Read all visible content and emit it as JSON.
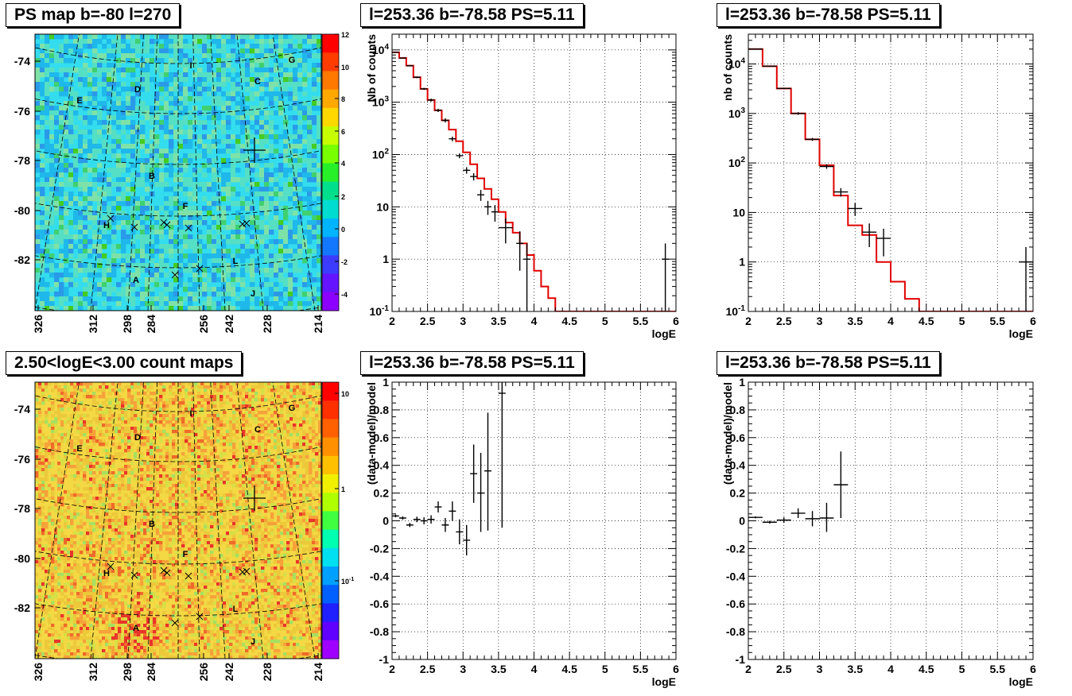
{
  "panels": {
    "p1": {
      "title": "PS map b=-80 l=270"
    },
    "p2": {
      "title": "l=253.36 b=-78.58 PS=5.11"
    },
    "p3": {
      "title": "l=253.36 b=-78.58 PS=5.11"
    },
    "p4": {
      "title": "2.50<logE<3.00 count maps"
    },
    "p5": {
      "title": "l=253.36 b=-78.58 PS=5.11"
    },
    "p6": {
      "title": "l=253.36 b=-78.58 PS=5.11"
    }
  },
  "chart_data": [
    {
      "id": "ps-map",
      "type": "heatmap",
      "title": "PS map b=-80 l=270",
      "x_ticks": [
        "326",
        "312",
        "298",
        "284",
        "256",
        "242",
        "228",
        "214"
      ],
      "y_ticks": [
        "-74",
        "-76",
        "-78",
        "-80",
        "-82"
      ],
      "colorbar_ticks": [
        "12",
        "10",
        "8",
        "6",
        "4",
        "2",
        "0",
        "-2",
        "-4"
      ],
      "zlim": [
        -5,
        12
      ],
      "region_labels": [
        "A",
        "B",
        "C",
        "D",
        "E",
        "F",
        "G",
        "H",
        "I",
        "J",
        "L"
      ],
      "colors": {
        "background": "#33ddee"
      }
    },
    {
      "id": "spectrum-1",
      "type": "line",
      "title": "l=253.36 b=-78.58 PS=5.11",
      "xlabel": "logE",
      "ylabel": "Nb of counts",
      "xlim": [
        2,
        6
      ],
      "ylim": [
        0.1,
        20000
      ],
      "log_y": true,
      "x_ticks": [
        "2",
        "2.5",
        "3",
        "3.5",
        "4",
        "4.5",
        "5",
        "5.5",
        "6"
      ],
      "y_ticks": [
        "10^-1",
        "1",
        "10",
        "10^2",
        "10^3",
        "10^4"
      ],
      "grid": true,
      "model": {
        "color": "#e00000",
        "bin_edges": [
          2.0,
          2.1,
          2.2,
          2.3,
          2.4,
          2.5,
          2.6,
          2.7,
          2.8,
          2.9,
          3.0,
          3.1,
          3.2,
          3.3,
          3.4,
          3.5,
          3.6,
          3.7,
          3.8,
          3.9,
          4.0,
          4.1,
          4.2,
          4.3,
          4.4,
          4.5,
          4.6,
          4.7,
          4.8,
          4.9,
          5.0,
          5.1,
          5.2,
          5.3,
          5.4,
          5.5,
          5.6,
          5.7,
          5.8,
          5.9,
          6.0
        ],
        "values": [
          9000,
          7000,
          5000,
          3000,
          1800,
          1100,
          700,
          450,
          300,
          180,
          110,
          65,
          35,
          22,
          14,
          8,
          5,
          3.2,
          2,
          1.2,
          0.6,
          0.3,
          0.18,
          0.1,
          0.1,
          0.1,
          0.1,
          0.1,
          0.1,
          0.1,
          0.1,
          0.1,
          0.1,
          0.1,
          0.1,
          0.1,
          0.1,
          0.1,
          0.1,
          0.1
        ]
      },
      "data": [
        {
          "x": 2.05,
          "y": 9000,
          "xerr": 0.05,
          "ylo": 8800,
          "yhi": 9200
        },
        {
          "x": 2.15,
          "y": 7000,
          "xerr": 0.05,
          "ylo": 6830,
          "yhi": 7170
        },
        {
          "x": 2.25,
          "y": 5000,
          "xerr": 0.05,
          "ylo": 4860,
          "yhi": 5140
        },
        {
          "x": 2.35,
          "y": 3000,
          "xerr": 0.05,
          "ylo": 2890,
          "yhi": 3110
        },
        {
          "x": 2.45,
          "y": 1800,
          "xerr": 0.05,
          "ylo": 1720,
          "yhi": 1880
        },
        {
          "x": 2.55,
          "y": 1100,
          "xerr": 0.05,
          "ylo": 1030,
          "yhi": 1170
        },
        {
          "x": 2.65,
          "y": 700,
          "xerr": 0.05,
          "ylo": 650,
          "yhi": 750
        },
        {
          "x": 2.75,
          "y": 450,
          "xerr": 0.05,
          "ylo": 410,
          "yhi": 490
        },
        {
          "x": 2.85,
          "y": 200,
          "xerr": 0.05,
          "ylo": 180,
          "yhi": 220
        },
        {
          "x": 2.95,
          "y": 95,
          "xerr": 0.05,
          "ylo": 85,
          "yhi": 105
        },
        {
          "x": 3.05,
          "y": 50,
          "xerr": 0.05,
          "ylo": 43,
          "yhi": 57
        },
        {
          "x": 3.15,
          "y": 38,
          "xerr": 0.05,
          "ylo": 32,
          "yhi": 44
        },
        {
          "x": 3.25,
          "y": 17,
          "xerr": 0.05,
          "ylo": 13,
          "yhi": 21
        },
        {
          "x": 3.35,
          "y": 10,
          "xerr": 0.05,
          "ylo": 7,
          "yhi": 13
        },
        {
          "x": 3.45,
          "y": 8,
          "xerr": 0.05,
          "ylo": 5.2,
          "yhi": 10.8
        },
        {
          "x": 3.6,
          "y": 4,
          "xerr": 0.1,
          "ylo": 2,
          "yhi": 6
        },
        {
          "x": 3.8,
          "y": 2,
          "xerr": 0.05,
          "ylo": 0.6,
          "yhi": 3.4
        },
        {
          "x": 3.9,
          "y": 1,
          "xerr": 0.05,
          "ylo": 0.1,
          "yhi": 2
        },
        {
          "x": 5.85,
          "y": 1,
          "xerr": 0.05,
          "ylo": 0.1,
          "yhi": 2
        }
      ]
    },
    {
      "id": "spectrum-2",
      "type": "line",
      "title": "l=253.36 b=-78.58 PS=5.11",
      "xlabel": "logE",
      "ylabel": "nb of counts",
      "xlim": [
        2,
        6
      ],
      "ylim": [
        0.1,
        40000
      ],
      "log_y": true,
      "x_ticks": [
        "2",
        "2.5",
        "3",
        "3.5",
        "4",
        "4.5",
        "5",
        "5.5",
        "6"
      ],
      "y_ticks": [
        "10^-1",
        "1",
        "10",
        "10^2",
        "10^3",
        "10^4"
      ],
      "grid": true,
      "model": {
        "color": "#e00000",
        "bin_edges": [
          2.0,
          2.2,
          2.4,
          2.6,
          2.8,
          3.0,
          3.2,
          3.4,
          3.6,
          3.8,
          4.0,
          4.2,
          4.4,
          4.6,
          4.8,
          5.0,
          5.2,
          5.4,
          5.6,
          5.8,
          6.0
        ],
        "values": [
          20000,
          9000,
          3200,
          1000,
          300,
          90,
          22,
          5.5,
          3.5,
          1,
          0.4,
          0.18,
          0.1,
          0.1,
          0.1,
          0.1,
          0.1,
          0.1,
          0.1,
          0.1
        ]
      },
      "data": [
        {
          "x": 2.1,
          "y": 20000,
          "xerr": 0.1,
          "ylo": 19700,
          "yhi": 20300
        },
        {
          "x": 2.3,
          "y": 9000,
          "xerr": 0.1,
          "ylo": 8800,
          "yhi": 9200
        },
        {
          "x": 2.5,
          "y": 3200,
          "xerr": 0.1,
          "ylo": 3090,
          "yhi": 3310
        },
        {
          "x": 2.7,
          "y": 1000,
          "xerr": 0.1,
          "ylo": 940,
          "yhi": 1060
        },
        {
          "x": 2.9,
          "y": 300,
          "xerr": 0.1,
          "ylo": 280,
          "yhi": 320
        },
        {
          "x": 3.1,
          "y": 85,
          "xerr": 0.1,
          "ylo": 76,
          "yhi": 94
        },
        {
          "x": 3.3,
          "y": 26,
          "xerr": 0.1,
          "ylo": 21,
          "yhi": 31
        },
        {
          "x": 3.5,
          "y": 12,
          "xerr": 0.1,
          "ylo": 8.5,
          "yhi": 15.5
        },
        {
          "x": 3.7,
          "y": 4,
          "xerr": 0.1,
          "ylo": 2,
          "yhi": 6
        },
        {
          "x": 3.9,
          "y": 3,
          "xerr": 0.1,
          "ylo": 1.3,
          "yhi": 4.7
        },
        {
          "x": 5.9,
          "y": 1,
          "xerr": 0.1,
          "ylo": 0.1,
          "yhi": 2
        }
      ]
    },
    {
      "id": "count-map",
      "type": "heatmap",
      "title": "2.50<logE<3.00 count maps",
      "x_ticks": [
        "326",
        "312",
        "298",
        "284",
        "256",
        "242",
        "228",
        "214"
      ],
      "y_ticks": [
        "-74",
        "-76",
        "-78",
        "-80",
        "-82"
      ],
      "colorbar_ticks": [
        "10",
        "1",
        "10^-1"
      ],
      "log_z": true,
      "region_labels": [
        "A",
        "B",
        "C",
        "D",
        "E",
        "F",
        "G",
        "H",
        "I",
        "J",
        "L"
      ]
    },
    {
      "id": "residuals-1",
      "type": "scatter",
      "title": "l=253.36 b=-78.58 PS=5.11",
      "xlabel": "logE",
      "ylabel": "(data-model)/model",
      "xlim": [
        2,
        6
      ],
      "ylim": [
        -1,
        1
      ],
      "x_ticks": [
        "2",
        "2.5",
        "3",
        "3.5",
        "4",
        "4.5",
        "5",
        "5.5",
        "6"
      ],
      "y_ticks": [
        "1",
        "0.8",
        "0.6",
        "0.4",
        "0.2",
        "0",
        "-0.2",
        "-0.4",
        "-0.6",
        "-0.8",
        "-1"
      ],
      "grid": true,
      "data": [
        {
          "x": 2.05,
          "y": 0.035,
          "xerr": 0.05,
          "ylo": 0.025,
          "yhi": 0.045
        },
        {
          "x": 2.15,
          "y": 0.02,
          "xerr": 0.05,
          "ylo": 0.008,
          "yhi": 0.032
        },
        {
          "x": 2.25,
          "y": -0.03,
          "xerr": 0.05,
          "ylo": -0.045,
          "yhi": -0.015
        },
        {
          "x": 2.35,
          "y": 0.01,
          "xerr": 0.05,
          "ylo": -0.01,
          "yhi": 0.03
        },
        {
          "x": 2.45,
          "y": 0.0,
          "xerr": 0.05,
          "ylo": -0.025,
          "yhi": 0.025
        },
        {
          "x": 2.55,
          "y": 0.01,
          "xerr": 0.05,
          "ylo": -0.02,
          "yhi": 0.04
        },
        {
          "x": 2.65,
          "y": 0.1,
          "xerr": 0.05,
          "ylo": 0.06,
          "yhi": 0.14
        },
        {
          "x": 2.75,
          "y": -0.03,
          "xerr": 0.05,
          "ylo": -0.08,
          "yhi": 0.02
        },
        {
          "x": 2.85,
          "y": 0.07,
          "xerr": 0.05,
          "ylo": 0.0,
          "yhi": 0.14
        },
        {
          "x": 2.95,
          "y": -0.08,
          "xerr": 0.05,
          "ylo": -0.17,
          "yhi": 0.01
        },
        {
          "x": 3.05,
          "y": -0.14,
          "xerr": 0.05,
          "ylo": -0.25,
          "yhi": -0.03
        },
        {
          "x": 3.15,
          "y": 0.34,
          "xerr": 0.05,
          "ylo": 0.13,
          "yhi": 0.55
        },
        {
          "x": 3.25,
          "y": 0.2,
          "xerr": 0.05,
          "ylo": -0.08,
          "yhi": 0.49
        },
        {
          "x": 3.35,
          "y": 0.36,
          "xerr": 0.05,
          "ylo": -0.07,
          "yhi": 0.78
        },
        {
          "x": 3.55,
          "y": 0.92,
          "xerr": 0.05,
          "ylo": -0.05,
          "yhi": 1.0
        }
      ]
    },
    {
      "id": "residuals-2",
      "type": "scatter",
      "title": "l=253.36 b=-78.58 PS=5.11",
      "xlabel": "logE",
      "ylabel": "(data-model)/model",
      "xlim": [
        2,
        6
      ],
      "ylim": [
        -1,
        1
      ],
      "x_ticks": [
        "2",
        "2.5",
        "3",
        "3.5",
        "4",
        "4.5",
        "5",
        "5.5",
        "6"
      ],
      "y_ticks": [
        "1",
        "0.8",
        "0.6",
        "0.4",
        "0.2",
        "0",
        "-0.2",
        "-0.4",
        "-0.6",
        "-0.8",
        "-1"
      ],
      "grid": true,
      "data": [
        {
          "x": 2.1,
          "y": 0.025,
          "xerr": 0.1,
          "ylo": 0.018,
          "yhi": 0.032
        },
        {
          "x": 2.3,
          "y": -0.01,
          "xerr": 0.1,
          "ylo": -0.02,
          "yhi": 0.0
        },
        {
          "x": 2.5,
          "y": 0.005,
          "xerr": 0.1,
          "ylo": -0.015,
          "yhi": 0.025
        },
        {
          "x": 2.7,
          "y": 0.055,
          "xerr": 0.1,
          "ylo": 0.02,
          "yhi": 0.09
        },
        {
          "x": 2.9,
          "y": 0.015,
          "xerr": 0.1,
          "ylo": -0.04,
          "yhi": 0.07
        },
        {
          "x": 3.1,
          "y": 0.02,
          "xerr": 0.1,
          "ylo": -0.08,
          "yhi": 0.13
        },
        {
          "x": 3.3,
          "y": 0.26,
          "xerr": 0.1,
          "ylo": 0.02,
          "yhi": 0.5
        }
      ]
    }
  ]
}
